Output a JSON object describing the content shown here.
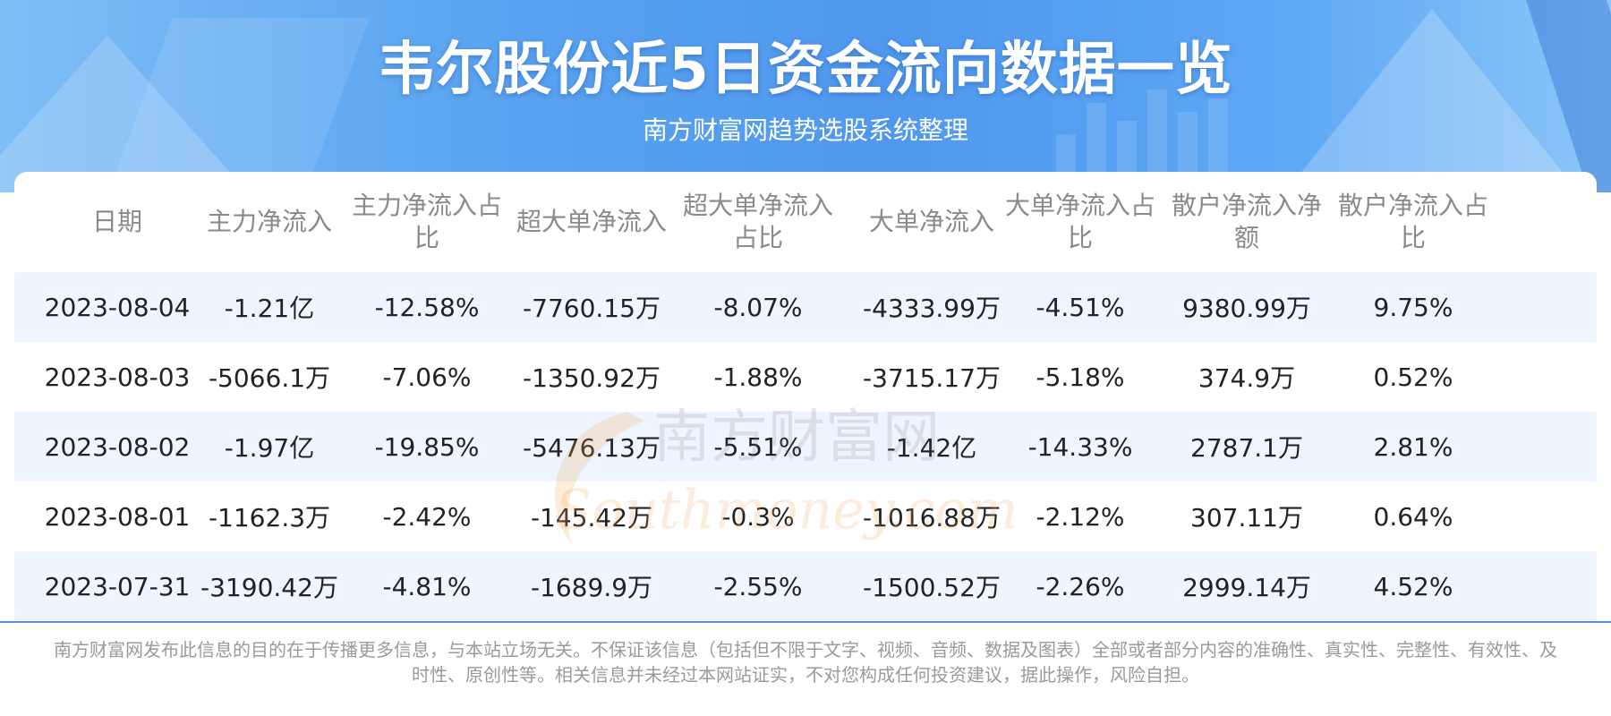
{
  "header": {
    "title": "韦尔股份近5日资金流向数据一览",
    "subtitle": "南方财富网趋势选股系统整理"
  },
  "table": {
    "columns": [
      "日期",
      "主力净流入",
      "主力净流入占比",
      "超大单净流入",
      "超大单净流入占比",
      "大单净流入",
      "大单净流入占比",
      "散户净流入净额",
      "散户净流入占比"
    ],
    "rows": [
      [
        "2023-08-04",
        "-1.21亿",
        "-12.58%",
        "-7760.15万",
        "-8.07%",
        "-4333.99万",
        "-4.51%",
        "9380.99万",
        "9.75%"
      ],
      [
        "2023-08-03",
        "-5066.1万",
        "-7.06%",
        "-1350.92万",
        "-1.88%",
        "-3715.17万",
        "-5.18%",
        "374.9万",
        "0.52%"
      ],
      [
        "2023-08-02",
        "-1.97亿",
        "-19.85%",
        "-5476.13万",
        "-5.51%",
        "-1.42亿",
        "-14.33%",
        "2787.1万",
        "2.81%"
      ],
      [
        "2023-08-01",
        "-1162.3万",
        "-2.42%",
        "-145.42万",
        "-0.3%",
        "-1016.88万",
        "-2.12%",
        "307.11万",
        "0.64%"
      ],
      [
        "2023-07-31",
        "-3190.42万",
        "-4.81%",
        "-1689.9万",
        "-2.55%",
        "-1500.52万",
        "-2.26%",
        "2999.14万",
        "4.52%"
      ]
    ]
  },
  "watermark": {
    "cn": "南方财富网",
    "en": "Southmoney.com"
  },
  "footer": {
    "disclaimer": "南方财富网发布此信息的目的在于传播更多信息，与本站立场无关。不保证该信息（包括但不限于文字、视频、音频、数据及图表）全部或者部分内容的准确性、真实性、完整性、有效性、及时性、原创性等。相关信息并未经过本网站证实，不对您构成任何投资建议，据此操作，风险自担。"
  },
  "colors": {
    "banner": "#4f98ee",
    "alt_row": "#eef5ff",
    "header_text": "#8a8a8a",
    "rule": "#5b8fd6"
  }
}
